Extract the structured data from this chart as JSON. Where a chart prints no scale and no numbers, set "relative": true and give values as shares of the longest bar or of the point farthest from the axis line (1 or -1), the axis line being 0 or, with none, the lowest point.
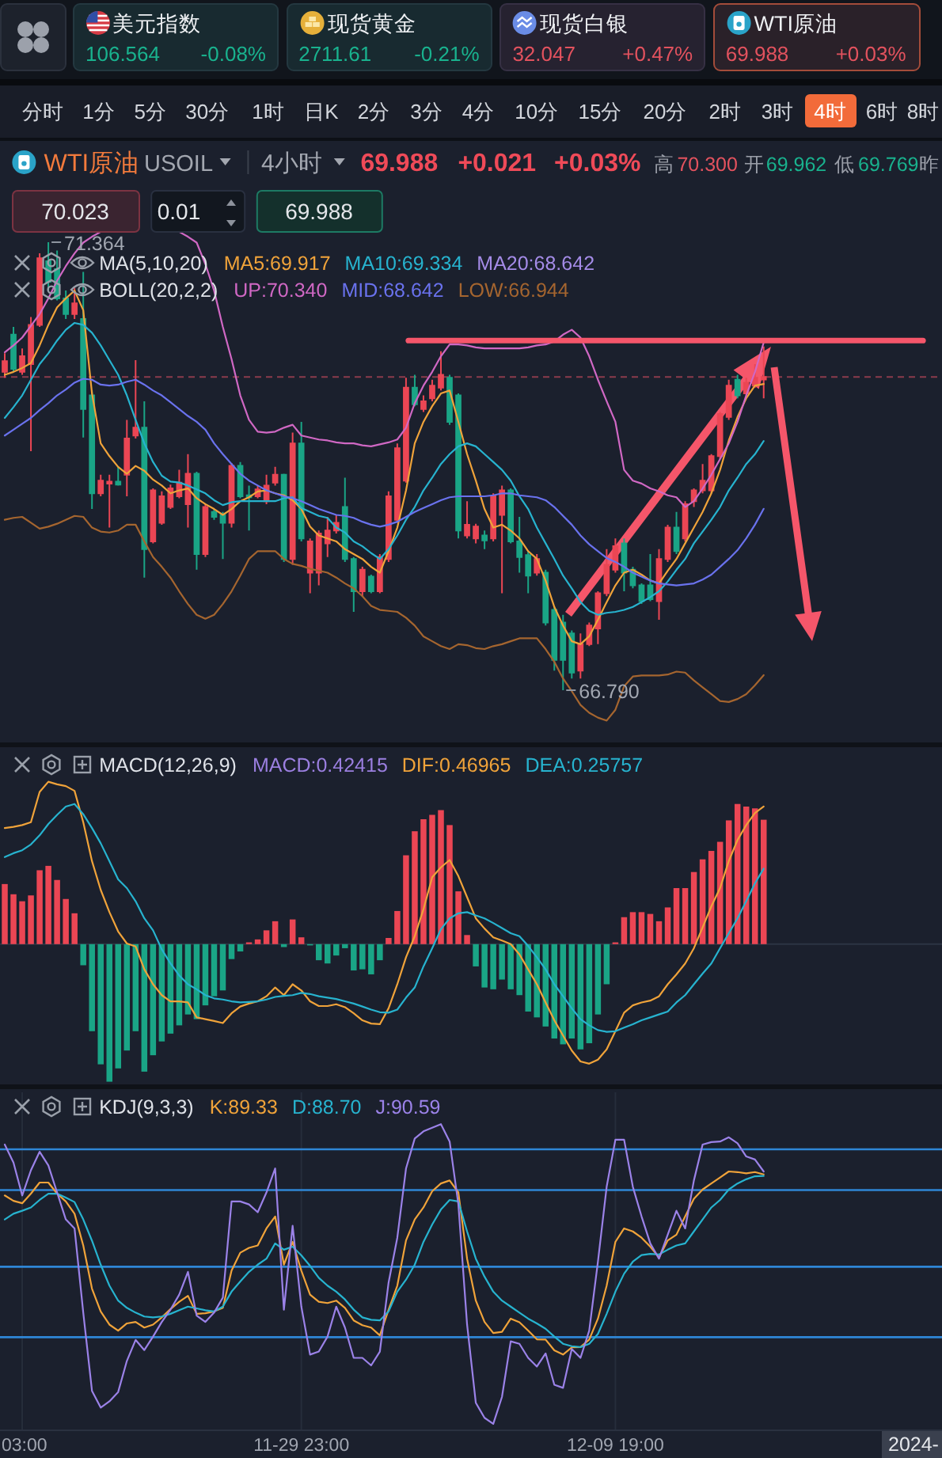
{
  "chart_data": [
    {
      "type": "other",
      "annotations": [
        "美元指数",
        "106.564",
        "-0.08%",
        "现货黄金",
        "2711.61",
        "-0.21%",
        "现货白银",
        "32.047",
        "+0.47%",
        "WTI原油",
        "69.988",
        "+0.03%",
        "分时",
        "1分",
        "5分",
        "30分",
        "1时",
        "日K",
        "2分",
        "3分",
        "4分",
        "10分",
        "15分",
        "20分",
        "2时",
        "3时",
        "4时",
        "6时",
        "8时",
        "WTI原油",
        "USOIL",
        "4小时",
        "69.988",
        "+0.021",
        "+0.03%",
        "高",
        "70.300",
        "开",
        "69.962",
        "低",
        "69.769",
        "昨",
        "70.023",
        "0.01",
        "69.988"
      ]
    },
    {
      "type": "candlestick",
      "title": "MA(5,10,20)",
      "subtitle": "BOLL(20,2,2)",
      "categories": [
        null,
        null,
        null,
        null,
        null,
        null,
        null,
        null,
        null,
        null,
        null,
        null,
        null,
        null,
        null,
        null,
        null,
        null,
        null,
        null,
        null,
        null,
        null,
        null,
        null,
        null,
        null,
        null,
        null,
        null,
        null,
        null,
        null,
        null,
        null,
        null,
        null,
        null,
        null,
        null,
        null,
        null,
        null,
        null,
        null,
        null,
        null,
        null,
        null,
        null,
        null,
        null,
        null,
        null,
        null,
        null,
        null,
        null,
        null,
        null,
        null,
        null,
        null,
        null,
        null,
        null,
        null,
        null,
        null,
        null,
        null,
        null,
        null,
        null,
        null,
        null,
        null,
        null,
        null,
        null,
        null,
        null,
        null,
        null,
        null,
        null,
        null,
        null
      ],
      "ohlc": [
        [
          70.04,
          70.23,
          69.98,
          70.15
        ],
        [
          70.42,
          70.5,
          70.04,
          70.07
        ],
        [
          70.04,
          70.28,
          70.01,
          70.2
        ],
        [
          70.12,
          70.6,
          69.23,
          70.52
        ],
        [
          70.52,
          71.25,
          70.5,
          71.2
        ],
        [
          71.17,
          71.364,
          70.87,
          70.96
        ],
        [
          71.09,
          71.28,
          70.77,
          70.79
        ],
        [
          70.79,
          70.87,
          70.58,
          70.63
        ],
        [
          70.63,
          70.9,
          70.58,
          70.74
        ],
        [
          70.58,
          71.06,
          69.37,
          69.66
        ],
        [
          69.8,
          69.85,
          68.64,
          68.8
        ],
        [
          68.8,
          68.99,
          68.77,
          68.93
        ],
        [
          68.9,
          68.99,
          68.45,
          68.92
        ],
        [
          68.92,
          69.07,
          68.88,
          68.89
        ],
        [
          68.99,
          69.55,
          68.77,
          69.36
        ],
        [
          69.39,
          70.16,
          69.36,
          69.47
        ],
        [
          69.47,
          69.74,
          67.94,
          68.23
        ],
        [
          68.31,
          68.85,
          68.29,
          68.83
        ],
        [
          68.5,
          68.82,
          68.48,
          68.77
        ],
        [
          68.66,
          68.89,
          68.64,
          68.85
        ],
        [
          68.77,
          69.04,
          68.75,
          68.91
        ],
        [
          68.69,
          69.2,
          68.45,
          69.0
        ],
        [
          69.0,
          69.02,
          68.02,
          68.18
        ],
        [
          68.18,
          68.69,
          68.15,
          68.66
        ],
        [
          68.61,
          68.64,
          68.53,
          68.56
        ],
        [
          68.58,
          68.61,
          68.13,
          68.5
        ],
        [
          68.5,
          69.11,
          68.45,
          69.08
        ],
        [
          69.08,
          69.12,
          68.75,
          68.77
        ],
        [
          68.78,
          68.88,
          68.42,
          68.76
        ],
        [
          68.77,
          68.88,
          68.75,
          68.84
        ],
        [
          68.72,
          68.99,
          68.69,
          68.88
        ],
        [
          68.91,
          69.07,
          68.88,
          68.99
        ],
        [
          68.99,
          69.0,
          68.1,
          68.13
        ],
        [
          68.13,
          69.42,
          68.07,
          69.31
        ],
        [
          69.31,
          69.53,
          68.31,
          68.34
        ],
        [
          67.99,
          68.34,
          67.78,
          68.31
        ],
        [
          67.99,
          68.42,
          67.86,
          68.39
        ],
        [
          68.29,
          68.56,
          68.15,
          68.42
        ],
        [
          68.42,
          68.58,
          68.39,
          68.5
        ],
        [
          68.66,
          68.96,
          68.1,
          68.13
        ],
        [
          68.13,
          68.15,
          67.59,
          67.8
        ],
        [
          67.8,
          68.05,
          67.75,
          68.02
        ],
        [
          67.95,
          67.97,
          67.78,
          67.8
        ],
        [
          67.8,
          68.18,
          67.78,
          68.15
        ],
        [
          68.13,
          68.82,
          68.1,
          68.77
        ],
        [
          68.53,
          69.31,
          68.5,
          69.26
        ],
        [
          68.93,
          69.98,
          68.91,
          69.88
        ],
        [
          69.88,
          70.01,
          69.69,
          69.71
        ],
        [
          69.66,
          69.8,
          69.63,
          69.74
        ],
        [
          69.77,
          69.96,
          69.74,
          69.9
        ],
        [
          69.88,
          70.25,
          69.85,
          70.01
        ],
        [
          69.98,
          70.01,
          69.5,
          69.53
        ],
        [
          69.8,
          69.82,
          68.34,
          68.42
        ],
        [
          68.37,
          68.72,
          68.34,
          68.48
        ],
        [
          68.34,
          68.49,
          68.29,
          68.46
        ],
        [
          68.37,
          68.42,
          68.23,
          68.32
        ],
        [
          68.34,
          68.8,
          68.31,
          68.77
        ],
        [
          68.58,
          68.88,
          67.78,
          68.83
        ],
        [
          68.83,
          68.85,
          68.29,
          68.31
        ],
        [
          68.31,
          68.56,
          67.99,
          68.15
        ],
        [
          68.17,
          68.21,
          67.78,
          67.96
        ],
        [
          67.99,
          68.18,
          67.96,
          68.13
        ],
        [
          67.99,
          68.02,
          67.45,
          67.48
        ],
        [
          67.61,
          67.64,
          66.99,
          67.1
        ],
        [
          67.48,
          67.56,
          66.79,
          67.1
        ],
        [
          67.37,
          67.4,
          66.91,
          66.97
        ],
        [
          66.99,
          67.37,
          66.91,
          67.26
        ],
        [
          67.26,
          67.48,
          67.24,
          67.45
        ],
        [
          67.42,
          67.8,
          67.26,
          67.78
        ],
        [
          67.78,
          68.23,
          67.75,
          68.07
        ],
        [
          68.02,
          68.34,
          67.99,
          68.26
        ],
        [
          68.29,
          68.34,
          67.8,
          67.99
        ],
        [
          68.02,
          68.05,
          67.83,
          67.86
        ],
        [
          67.86,
          67.88,
          67.67,
          67.7
        ],
        [
          67.86,
          68.18,
          67.7,
          67.72
        ],
        [
          67.7,
          68.23,
          67.51,
          68.13
        ],
        [
          68.13,
          68.48,
          68.1,
          68.45
        ],
        [
          68.45,
          68.61,
          68.18,
          68.21
        ],
        [
          68.34,
          68.72,
          68.31,
          68.69
        ],
        [
          68.72,
          68.85,
          68.66,
          68.83
        ],
        [
          68.83,
          69.1,
          68.8,
          68.93
        ],
        [
          68.83,
          69.2,
          68.8,
          69.18
        ],
        [
          69.18,
          69.63,
          69.15,
          69.61
        ],
        [
          69.58,
          69.96,
          69.55,
          69.9
        ],
        [
          69.96,
          70.01,
          69.77,
          69.8
        ],
        [
          69.82,
          69.98,
          69.8,
          69.93
        ],
        [
          69.9,
          70.12,
          69.88,
          69.98
        ],
        [
          69.962,
          70.3,
          69.769,
          69.988
        ]
      ],
      "colors": [
        "#eb4654",
        "#1aa586",
        "#eb4654",
        "#eb4654",
        "#eb4654",
        "#1aa586",
        "#1aa586",
        "#1aa586",
        "#eb4654",
        "#1aa586",
        "#1aa586",
        "#eb4654",
        "#eb4654",
        "#1aa586",
        "#eb4654",
        "#eb4654",
        "#1aa586",
        "#eb4654",
        "#eb4654",
        "#eb4654",
        "#eb4654",
        "#eb4654",
        "#1aa586",
        "#eb4654",
        "#1aa586",
        "#1aa586",
        "#eb4654",
        "#1aa586",
        "#1aa586",
        "#eb4654",
        "#eb4654",
        "#eb4654",
        "#1aa586",
        "#eb4654",
        "#1aa586",
        "#eb4654",
        "#eb4654",
        "#eb4654",
        "#eb4654",
        "#1aa586",
        "#1aa586",
        "#eb4654",
        "#1aa586",
        "#eb4654",
        "#eb4654",
        "#eb4654",
        "#eb4654",
        "#1aa586",
        "#eb4654",
        "#eb4654",
        "#eb4654",
        "#1aa586",
        "#1aa586",
        "#eb4654",
        "#eb4654",
        "#1aa586",
        "#eb4654",
        "#eb4654",
        "#1aa586",
        "#1aa586",
        "#1aa586",
        "#eb4654",
        "#1aa586",
        "#1aa586",
        "#1aa586",
        "#1aa586",
        "#eb4654",
        "#eb4654",
        "#eb4654",
        "#eb4654",
        "#eb4654",
        "#1aa586",
        "#1aa586",
        "#1aa586",
        "#1aa586",
        "#eb4654",
        "#eb4654",
        "#1aa586",
        "#eb4654",
        "#eb4654",
        "#eb4654",
        "#eb4654",
        "#eb4654",
        "#eb4654",
        "#1aa586",
        "#eb4654",
        "#eb4654",
        "#eb4654"
      ],
      "series": [
        {
          "name": "MA5:69.917",
          "type": "line",
          "color": "#f0a33a",
          "values": [
            70.01,
            70.04,
            70.08,
            70.13,
            70.31,
            70.52,
            70.7,
            70.79,
            70.87,
            70.67,
            69.82,
            69.31,
            69.18,
            69.07,
            69.0,
            69.08,
            69.03,
            68.94,
            68.88,
            68.8,
            68.83,
            68.85,
            68.75,
            68.69,
            68.64,
            68.58,
            68.64,
            68.72,
            68.76,
            68.82,
            68.83,
            68.8,
            68.78,
            68.73,
            68.64,
            68.46,
            68.37,
            68.34,
            68.31,
            68.23,
            68.18,
            68.13,
            68.05,
            67.99,
            68.21,
            68.45,
            68.83,
            69.31,
            69.53,
            69.69,
            69.82,
            69.85,
            69.53,
            69.2,
            68.93,
            68.64,
            68.45,
            68.48,
            68.42,
            68.34,
            68.21,
            68.13,
            67.91,
            67.64,
            67.45,
            67.29,
            67.26,
            67.34,
            67.51,
            67.69,
            67.86,
            67.99,
            68.02,
            67.97,
            67.91,
            67.88,
            68.01,
            68.13,
            68.29,
            68.45,
            68.61,
            68.8,
            69.04,
            69.34,
            69.58,
            69.77,
            69.9,
            69.917
          ]
        },
        {
          "name": "MA10:69.334",
          "type": "line",
          "color": "#27b3cf",
          "values": [
            69.57,
            69.68,
            69.8,
            69.96,
            70.12,
            70.23,
            70.36,
            70.47,
            70.54,
            70.52,
            70.44,
            70.31,
            70.16,
            70.01,
            69.8,
            69.55,
            69.31,
            69.12,
            68.98,
            68.92,
            68.91,
            68.88,
            68.84,
            68.8,
            68.73,
            68.68,
            68.71,
            68.72,
            68.72,
            68.72,
            68.72,
            68.72,
            68.75,
            68.76,
            68.65,
            68.61,
            68.57,
            68.55,
            68.45,
            68.4,
            68.31,
            68.26,
            68.19,
            68.13,
            68.23,
            68.37,
            68.53,
            68.66,
            68.83,
            68.96,
            69.1,
            69.2,
            69.28,
            69.31,
            69.28,
            69.2,
            69.12,
            69.04,
            68.93,
            68.77,
            68.64,
            68.45,
            68.29,
            68.13,
            67.96,
            67.83,
            67.69,
            67.6,
            67.56,
            67.58,
            67.59,
            67.61,
            67.64,
            67.69,
            67.74,
            67.8,
            67.9,
            68.02,
            68.13,
            68.29,
            68.41,
            68.53,
            68.66,
            68.83,
            68.96,
            69.1,
            69.2,
            69.334
          ]
        },
        {
          "name": "MA20:68.642",
          "type": "line",
          "color": "#a58ce8",
          "values": [
            null,
            null,
            null,
            null,
            null,
            null,
            null,
            null,
            null,
            null,
            null,
            null,
            null,
            null,
            null,
            null,
            null,
            null,
            null,
            null,
            null,
            null,
            null,
            null,
            null,
            null,
            null,
            null,
            null,
            null,
            null,
            null,
            null,
            null,
            null,
            null,
            null,
            null,
            null,
            null,
            null,
            null,
            null,
            null,
            null,
            null,
            null,
            null,
            null,
            null,
            null,
            null,
            null,
            null,
            null,
            null,
            null,
            null,
            null,
            null,
            null,
            null,
            null,
            null,
            null,
            null,
            null,
            null,
            null,
            null,
            null,
            null,
            null,
            null,
            null,
            null,
            null,
            null,
            null,
            null,
            null,
            null,
            null,
            null,
            null,
            null,
            null,
            null
          ]
        },
        {
          "name": "UP:70.340",
          "type": "line",
          "color": "#d068c4",
          "values": [
            70.24,
            70.31,
            70.39,
            70.51,
            70.63,
            70.79,
            70.97,
            71.12,
            71.25,
            71.36,
            71.42,
            71.47,
            null,
            null,
            null,
            null,
            null,
            null,
            null,
            null,
            71.47,
            71.42,
            71.36,
            71.14,
            70.87,
            70.5,
            70.17,
            69.8,
            69.55,
            69.43,
            69.42,
            69.43,
            69.47,
            69.5,
            69.39,
            69.37,
            69.35,
            69.34,
            69.32,
            69.31,
            69.31,
            69.29,
            69.28,
            69.3,
            69.32,
            69.35,
            69.47,
            69.72,
            69.9,
            70.04,
            70.2,
            70.32,
            70.32,
            70.31,
            70.29,
            70.28,
            70.28,
            70.28,
            70.28,
            70.28,
            70.29,
            70.31,
            70.32,
            70.35,
            70.42,
            70.47,
            70.39,
            70.2,
            69.96,
            69.74,
            69.53,
            69.04,
            68.93,
            68.9,
            68.85,
            68.82,
            68.78,
            68.76,
            68.66,
            68.72,
            68.85,
            68.99,
            69.15,
            69.31,
            69.53,
            69.8,
            70.04,
            70.34
          ]
        },
        {
          "name": "MID:68.642",
          "type": "line",
          "color": "#6a72ee",
          "values": [
            69.39,
            69.45,
            69.51,
            69.57,
            69.65,
            69.72,
            69.8,
            69.86,
            69.93,
            69.97,
            69.96,
            69.91,
            69.9,
            69.91,
            69.94,
            69.96,
            69.91,
            69.85,
            69.8,
            69.73,
            69.66,
            69.59,
            69.53,
            69.45,
            69.31,
            69.2,
            69.1,
            69.0,
            68.93,
            68.88,
            68.83,
            68.8,
            68.77,
            68.75,
            68.72,
            68.68,
            68.64,
            68.61,
            68.58,
            68.57,
            68.55,
            68.51,
            68.48,
            68.46,
            68.48,
            68.51,
            68.56,
            68.61,
            68.65,
            68.69,
            68.73,
            68.76,
            68.77,
            68.77,
            68.77,
            68.77,
            68.78,
            68.8,
            68.8,
            68.78,
            68.77,
            68.76,
            68.73,
            68.66,
            68.57,
            68.48,
            68.37,
            68.28,
            68.21,
            68.14,
            68.1,
            68.05,
            67.99,
            67.95,
            67.91,
            67.88,
            67.87,
            67.86,
            67.87,
            67.88,
            67.92,
            67.97,
            68.05,
            68.13,
            68.22,
            68.34,
            68.48,
            68.642
          ]
        },
        {
          "name": "LOW:66.944",
          "type": "line",
          "color": "#a5652f",
          "values": [
            68.53,
            68.55,
            68.56,
            68.5,
            68.44,
            68.46,
            68.49,
            68.53,
            68.57,
            68.56,
            68.45,
            68.41,
            68.4,
            68.42,
            68.48,
            68.48,
            68.31,
            68.15,
            68.05,
            67.94,
            67.8,
            67.67,
            67.56,
            67.52,
            67.56,
            67.67,
            67.8,
            67.96,
            68.13,
            68.21,
            68.21,
            68.21,
            68.13,
            68.08,
            68.06,
            68.03,
            68.01,
            67.99,
            67.94,
            67.88,
            67.83,
            67.75,
            67.65,
            67.61,
            67.6,
            67.59,
            67.53,
            67.45,
            67.34,
            67.29,
            67.24,
            67.21,
            67.26,
            67.25,
            67.22,
            67.21,
            67.24,
            67.26,
            67.29,
            67.32,
            67.32,
            67.32,
            67.21,
            67.08,
            66.91,
            66.78,
            66.64,
            66.56,
            66.51,
            66.48,
            66.59,
            66.83,
            66.93,
            66.94,
            66.94,
            66.94,
            66.95,
            66.98,
            66.97,
            66.89,
            66.82,
            66.75,
            66.68,
            66.67,
            66.7,
            66.75,
            66.84,
            66.944
          ]
        }
      ],
      "ref_lines": [
        {
          "axis": "y",
          "value": 69.988,
          "line_style": "dashed",
          "color": "#8c3b4c"
        },
        {
          "axis": "y",
          "value": 70.36,
          "color": "#f5566a"
        }
      ],
      "annotations": [
        {
          "text": "71.364",
          "y": 71.364
        },
        "66.790"
      ],
      "tick_labels": false
    },
    {
      "type": "bar",
      "title": "MACD(12,26,9)",
      "relative": true,
      "categories": [
        null,
        null,
        null,
        null,
        null,
        null,
        null,
        null,
        null,
        null,
        null,
        null,
        null,
        null,
        null,
        null,
        null,
        null,
        null,
        null,
        null,
        null,
        null,
        null,
        null,
        null,
        null,
        null,
        null,
        null,
        null,
        null,
        null,
        null,
        null,
        null,
        null,
        null,
        null,
        null,
        null,
        null,
        null,
        null,
        null,
        null,
        null,
        null,
        null,
        null,
        null,
        null,
        null,
        null,
        null,
        null,
        null,
        null,
        null,
        null,
        null,
        null,
        null,
        null,
        null,
        null,
        null,
        null,
        null,
        null,
        null,
        null,
        null,
        null,
        null,
        null,
        null,
        null,
        null,
        null,
        null,
        null,
        null,
        null,
        null,
        null,
        null,
        null
      ],
      "series": [
        {
          "name": "MACD:0.42415",
          "type": "bar",
          "color": "#9b7fe0",
          "colors": [
            "#eb4654",
            "#eb4654",
            "#eb4654",
            "#eb4654",
            "#eb4654",
            "#eb4654",
            "#eb4654",
            "#eb4654",
            "#eb4654",
            "#1aa586",
            "#1aa586",
            "#1aa586",
            "#1aa586",
            "#1aa586",
            "#1aa586",
            "#1aa586",
            "#1aa586",
            "#1aa586",
            "#1aa586",
            "#1aa586",
            "#1aa586",
            "#1aa586",
            "#1aa586",
            "#1aa586",
            "#1aa586",
            "#1aa586",
            "#1aa586",
            "#1aa586",
            "#eb4654",
            "#eb4654",
            "#eb4654",
            "#eb4654",
            "#1aa586",
            "#eb4654",
            "#eb4654",
            "#1aa586",
            "#1aa586",
            "#1aa586",
            "#1aa586",
            "#1aa586",
            "#1aa586",
            "#1aa586",
            "#1aa586",
            "#1aa586",
            "#eb4654",
            "#eb4654",
            "#eb4654",
            "#eb4654",
            "#eb4654",
            "#eb4654",
            "#eb4654",
            "#eb4654",
            "#eb4654",
            "#eb4654",
            "#1aa586",
            "#1aa586",
            "#1aa586",
            "#1aa586",
            "#1aa586",
            "#1aa586",
            "#1aa586",
            "#1aa586",
            "#1aa586",
            "#1aa586",
            "#1aa586",
            "#1aa586",
            "#1aa586",
            "#1aa586",
            "#1aa586",
            "#1aa586",
            "#eb4654",
            "#eb4654",
            "#eb4654",
            "#eb4654",
            "#eb4654",
            "#eb4654",
            "#eb4654",
            "#eb4654",
            "#eb4654",
            "#eb4654",
            "#eb4654",
            "#eb4654",
            "#eb4654",
            "#eb4654",
            "#eb4654",
            "#eb4654",
            "#eb4654",
            "#eb4654"
          ],
          "values": [
            0.37,
            0.307,
            0.264,
            0.3,
            0.455,
            0.482,
            0.395,
            0.278,
            0.19,
            -0.13,
            -0.536,
            -0.74,
            -0.847,
            -0.765,
            -0.655,
            -0.536,
            -0.785,
            -0.684,
            -0.599,
            -0.551,
            -0.5,
            -0.433,
            -0.462,
            -0.377,
            -0.321,
            -0.285,
            -0.092,
            -0.045,
            0.011,
            0.029,
            0.085,
            0.141,
            -0.018,
            0.152,
            0.042,
            -0.007,
            -0.099,
            -0.119,
            -0.07,
            -0.025,
            -0.162,
            -0.155,
            -0.186,
            -0.099,
            0.038,
            0.204,
            0.547,
            0.695,
            0.769,
            0.796,
            0.825,
            0.733,
            0.325,
            0.056,
            -0.137,
            -0.267,
            -0.278,
            -0.218,
            -0.278,
            -0.314,
            -0.415,
            -0.451,
            -0.507,
            -0.581,
            -0.617,
            -0.581,
            -0.648,
            -0.61,
            -0.433,
            -0.247,
            0.011,
            0.166,
            0.197,
            0.197,
            0.186,
            0.141,
            0.226,
            0.345,
            0.345,
            0.444,
            0.522,
            0.574,
            0.63,
            0.762,
            0.863,
            0.847,
            0.836,
            0.766
          ]
        },
        {
          "name": "DIF:0.46965",
          "type": "line",
          "color": "#f0a33a",
          "values": [
            0.715,
            0.722,
            0.733,
            0.751,
            0.937,
            1,
            0.984,
            0.973,
            0.944,
            0.751,
            0.511,
            0.334,
            0.197,
            0.078,
            0.004,
            -0.014,
            -0.155,
            -0.247,
            -0.314,
            -0.352,
            -0.352,
            -0.359,
            -0.451,
            -0.462,
            -0.473,
            -0.486,
            -0.426,
            -0.384,
            -0.366,
            -0.352,
            -0.321,
            -0.267,
            -0.314,
            -0.247,
            -0.285,
            -0.352,
            -0.381,
            -0.381,
            -0.37,
            -0.388,
            -0.426,
            -0.469,
            -0.489,
            -0.493,
            -0.395,
            -0.247,
            -0.081,
            0.049,
            0.215,
            0.412,
            0.473,
            0.518,
            0.419,
            0.289,
            0.159,
            0.096,
            0.042,
            0.022,
            0,
            -0.063,
            -0.155,
            -0.247,
            -0.359,
            -0.469,
            -0.563,
            -0.655,
            -0.722,
            -0.736,
            -0.711,
            -0.648,
            -0.536,
            -0.422,
            -0.377,
            -0.359,
            -0.348,
            -0.321,
            -0.247,
            -0.186,
            -0.119,
            -0.025,
            0.103,
            0.233,
            0.345,
            0.511,
            0.641,
            0.733,
            0.807,
            0.848
          ]
        },
        {
          "name": "DEA:0.25757",
          "type": "line",
          "color": "#27b3cf",
          "values": [
            0.536,
            0.56,
            0.578,
            0.614,
            0.67,
            0.74,
            0.796,
            0.847,
            0.863,
            0.8,
            0.715,
            0.621,
            0.511,
            0.399,
            0.345,
            0.264,
            0.159,
            0.085,
            -0.032,
            -0.119,
            -0.193,
            -0.247,
            -0.278,
            -0.314,
            -0.334,
            -0.341,
            -0.352,
            -0.359,
            -0.356,
            -0.352,
            -0.341,
            -0.325,
            -0.318,
            -0.314,
            -0.3,
            -0.307,
            -0.321,
            -0.329,
            -0.338,
            -0.352,
            -0.366,
            -0.384,
            -0.403,
            -0.419,
            -0.422,
            -0.403,
            -0.329,
            -0.267,
            -0.137,
            -0.025,
            0.092,
            0.159,
            0.19,
            0.197,
            0.177,
            0.159,
            0.13,
            0.099,
            0.067,
            0.049,
            -0.011,
            -0.081,
            -0.155,
            -0.247,
            -0.321,
            -0.395,
            -0.462,
            -0.5,
            -0.529,
            -0.54,
            -0.536,
            -0.514,
            -0.493,
            -0.469,
            -0.451,
            -0.433,
            -0.415,
            -0.359,
            -0.314,
            -0.247,
            -0.181,
            -0.119,
            -0.025,
            0.067,
            0.159,
            0.264,
            0.374,
            0.465
          ]
        }
      ],
      "tick_labels": false
    },
    {
      "type": "line",
      "title": "KDJ(9,3,3)",
      "relative": true,
      "categories": [
        null,
        null,
        "03:00",
        null,
        null,
        null,
        null,
        null,
        null,
        null,
        null,
        null,
        null,
        null,
        null,
        null,
        null,
        null,
        null,
        null,
        null,
        null,
        null,
        null,
        null,
        null,
        null,
        null,
        null,
        null,
        null,
        null,
        null,
        null,
        "11-29 23:00",
        null,
        null,
        null,
        null,
        null,
        null,
        null,
        null,
        null,
        null,
        null,
        null,
        null,
        null,
        null,
        null,
        null,
        null,
        null,
        null,
        null,
        null,
        null,
        null,
        null,
        null,
        null,
        null,
        null,
        null,
        null,
        null,
        null,
        null,
        null,
        "12-09 19:00",
        null,
        null,
        null,
        null,
        null,
        null,
        null,
        null,
        null,
        null,
        null,
        null,
        null,
        null,
        null,
        null,
        null
      ],
      "series": [
        {
          "name": "K:89.33",
          "color": "#f0a33a",
          "values": [
            0.762,
            0.744,
            0.736,
            0.768,
            0.805,
            0.805,
            0.768,
            0.742,
            0.701,
            0.595,
            0.451,
            0.375,
            0.331,
            0.311,
            0.335,
            0.34,
            0.321,
            0.331,
            0.355,
            0.383,
            0.407,
            0.427,
            0.367,
            0.369,
            0.375,
            0.387,
            0.511,
            0.571,
            0.587,
            0.595,
            0.652,
            0.692,
            0.531,
            0.607,
            0.511,
            0.431,
            0.407,
            0.403,
            0.411,
            0.387,
            0.345,
            0.329,
            0.321,
            0.295,
            0.381,
            0.461,
            0.612,
            0.682,
            0.722,
            0.776,
            0.802,
            0.812,
            0.772,
            0.551,
            0.411,
            0.34,
            0.303,
            0.307,
            0.351,
            0.339,
            0.311,
            0.282,
            0.281,
            0.245,
            0.231,
            0.255,
            0.256,
            0.281,
            0.351,
            0.461,
            0.607,
            0.652,
            0.642,
            0.621,
            0.591,
            0.555,
            0.612,
            0.631,
            0.692,
            0.751,
            0.782,
            0.802,
            0.822,
            0.842,
            0.84,
            0.836,
            0.84,
            0.832
          ]
        },
        {
          "name": "D:88.70",
          "color": "#27b3cf",
          "values": [
            0.682,
            0.701,
            0.711,
            0.722,
            0.747,
            0.768,
            0.768,
            0.755,
            0.74,
            0.682,
            0.611,
            0.531,
            0.461,
            0.411,
            0.387,
            0.371,
            0.358,
            0.355,
            0.358,
            0.367,
            0.379,
            0.391,
            0.385,
            0.379,
            0.375,
            0.391,
            0.441,
            0.475,
            0.507,
            0.531,
            0.551,
            0.602,
            0.581,
            0.591,
            0.562,
            0.527,
            0.487,
            0.461,
            0.441,
            0.415,
            0.381,
            0.355,
            0.347,
            0.345,
            0.375,
            0.441,
            0.481,
            0.531,
            0.607,
            0.665,
            0.715,
            0.747,
            0.742,
            0.642,
            0.551,
            0.491,
            0.441,
            0.411,
            0.391,
            0.371,
            0.351,
            0.335,
            0.317,
            0.291,
            0.267,
            0.259,
            0.256,
            0.267,
            0.3,
            0.367,
            0.441,
            0.501,
            0.541,
            0.563,
            0.567,
            0.565,
            0.581,
            0.595,
            0.602,
            0.642,
            0.682,
            0.722,
            0.747,
            0.782,
            0.802,
            0.816,
            0.826,
            0.827
          ]
        },
        {
          "name": "J:90.59",
          "color": "#9b82e8",
          "values": [
            0.932,
            0.872,
            0.762,
            0.846,
            0.908,
            0.862,
            0.772,
            0.682,
            0.652,
            0.371,
            0.11,
            0.054,
            0.075,
            0.106,
            0.21,
            0.28,
            0.246,
            0.291,
            0.34,
            0.381,
            0.431,
            0.507,
            0.361,
            0.34,
            0.371,
            0.421,
            0.742,
            0.742,
            0.732,
            0.706,
            0.772,
            0.852,
            0.381,
            0.661,
            0.391,
            0.231,
            0.241,
            0.291,
            0.391,
            0.321,
            0.22,
            0.22,
            0.195,
            0.241,
            0.471,
            0.621,
            0.852,
            0.952,
            0.976,
            0.988,
            1,
            0.942,
            0.732,
            0.331,
            0.07,
            0.02,
            0,
            0.09,
            0.275,
            0.267,
            0.22,
            0.191,
            0.235,
            0.13,
            0.12,
            0.25,
            0.22,
            0.311,
            0.541,
            0.791,
            0.948,
            0.948,
            0.791,
            0.692,
            0.602,
            0.551,
            0.631,
            0.711,
            0.652,
            0.812,
            0.932,
            0.94,
            0.942,
            0.956,
            0.936,
            0.892,
            0.882,
            0.842
          ]
        }
      ],
      "grid": "x",
      "ref_lines": [
        {
          "axis": "y",
          "value": 0.916,
          "color": "#2f86d6"
        },
        {
          "axis": "y",
          "value": 0.78,
          "color": "#2f86d6"
        },
        {
          "axis": "y",
          "value": 0.524,
          "color": "#2f86d6"
        },
        {
          "axis": "y",
          "value": 0.289,
          "color": "#2f86d6"
        }
      ],
      "annotations": [
        "2024-"
      ],
      "tick_labels": "x"
    }
  ]
}
